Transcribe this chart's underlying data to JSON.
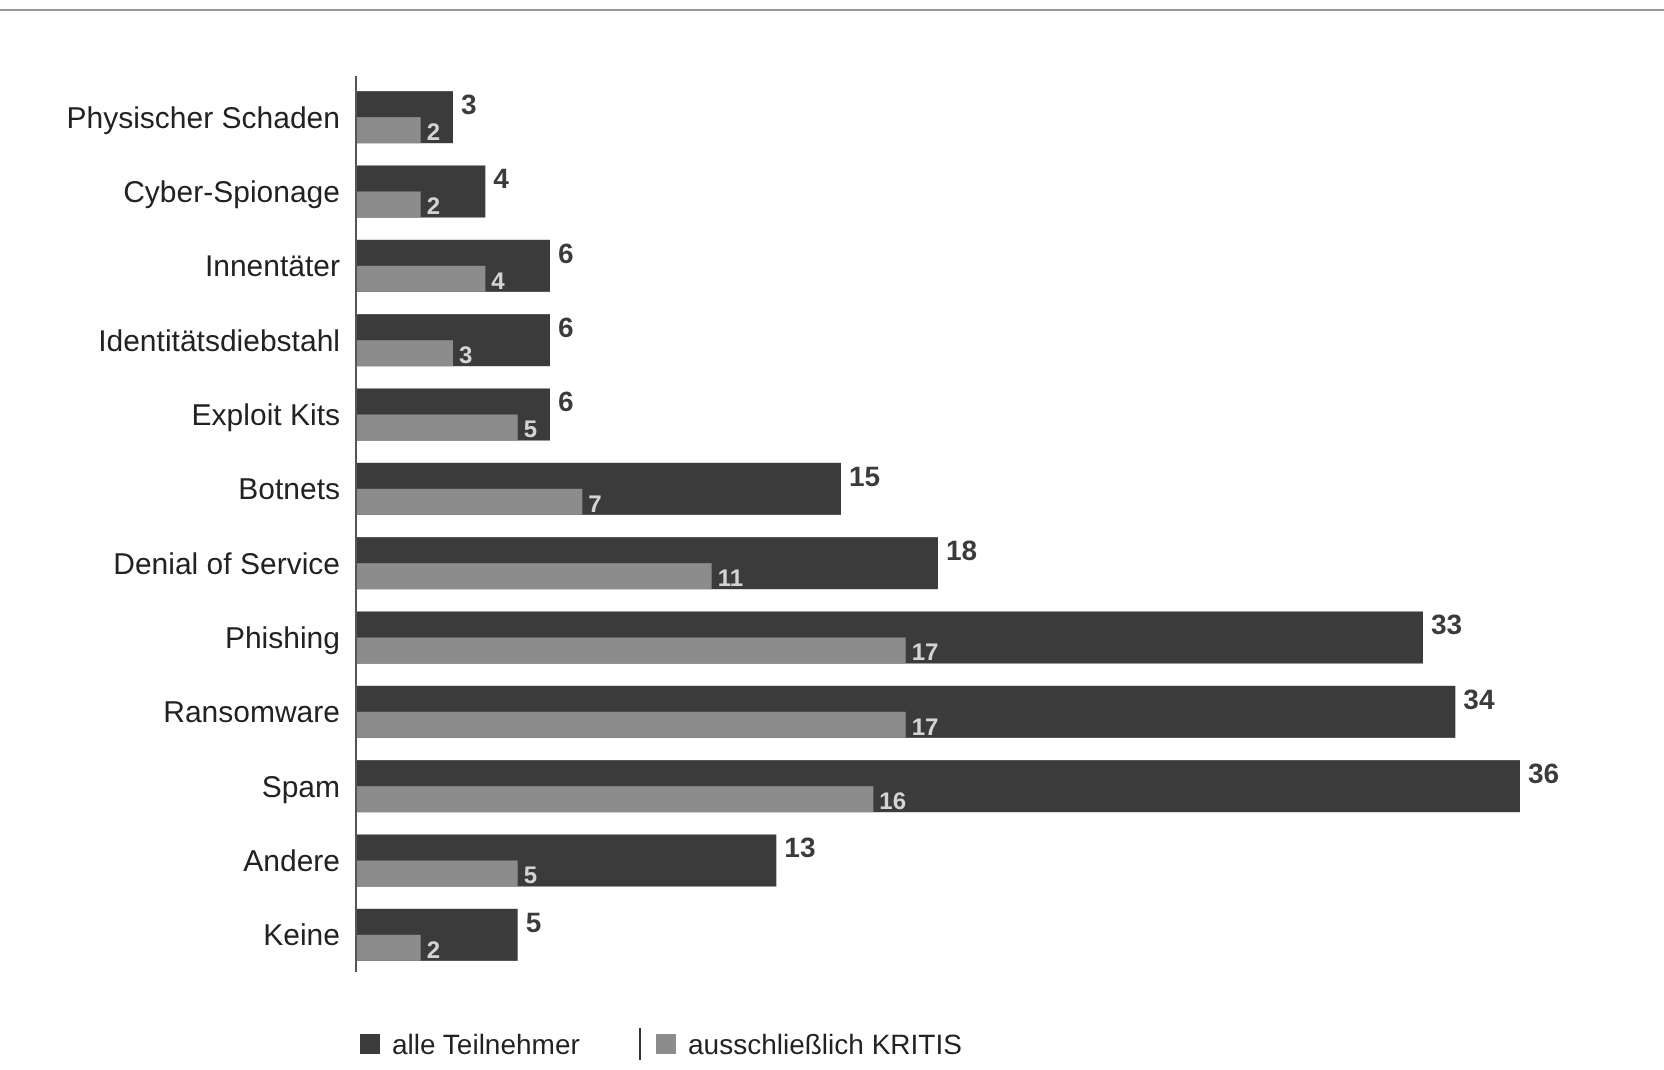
{
  "chart_data": {
    "type": "bar",
    "orientation": "horizontal",
    "categories": [
      "Physischer Schaden",
      "Cyber-Spionage",
      "Innentäter",
      "Identitätsdiebstahl",
      "Exploit Kits",
      "Botnets",
      "Denial of Service",
      "Phishing",
      "Ransomware",
      "Spam",
      "Andere",
      "Keine"
    ],
    "series": [
      {
        "name": "alle Teilnehmer",
        "color": "#3b3b3b",
        "values": [
          3,
          4,
          6,
          6,
          6,
          15,
          18,
          33,
          34,
          36,
          13,
          5
        ]
      },
      {
        "name": "ausschließlich KRITIS",
        "color": "#8c8c8c",
        "values": [
          2,
          2,
          4,
          3,
          5,
          7,
          11,
          17,
          17,
          16,
          5,
          2
        ]
      }
    ],
    "data_labels": true,
    "legend": "bottom"
  }
}
